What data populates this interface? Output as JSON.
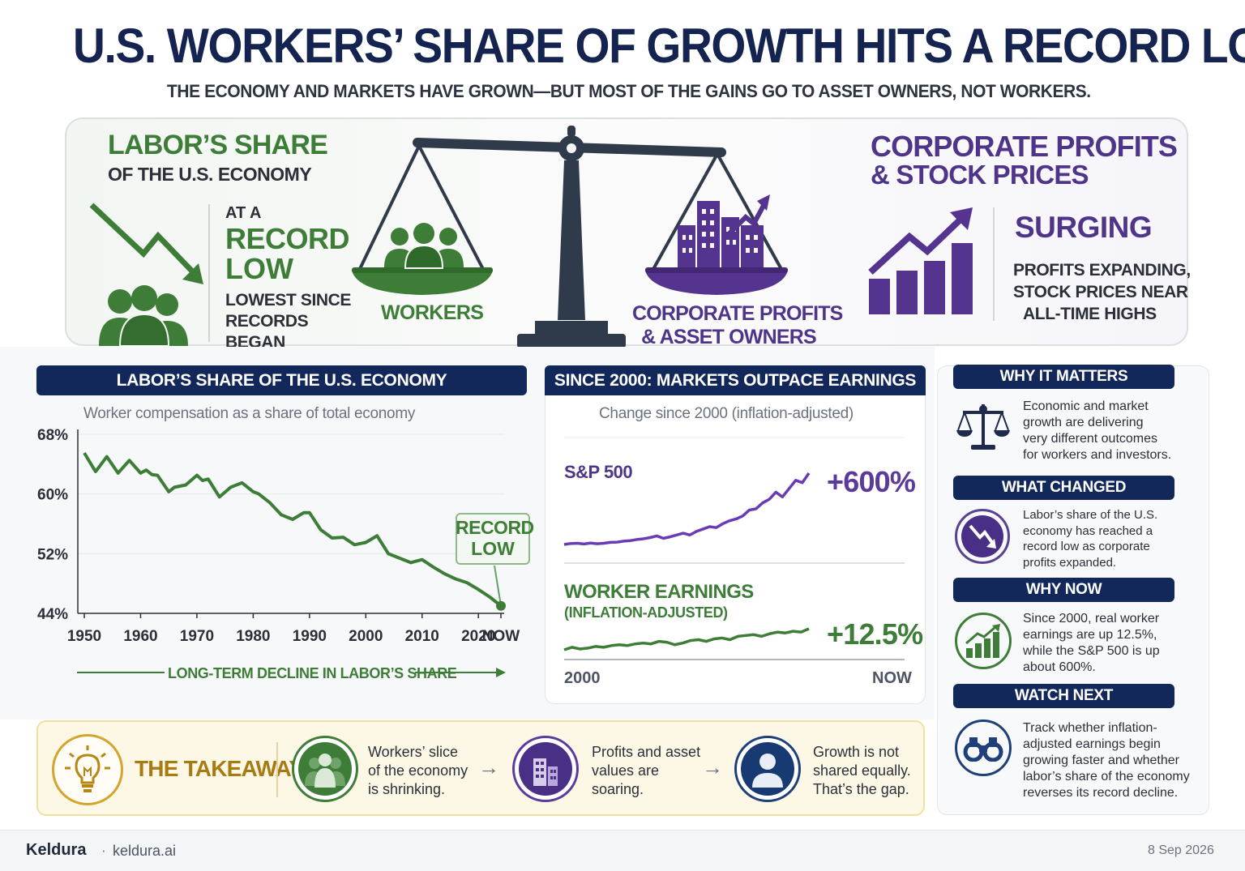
{
  "header": {
    "title": "U.S. WORKERS’ SHARE OF GROWTH HITS A RECORD LOW",
    "subtitle": "THE ECONOMY AND MARKETS HAVE GROWN—BUT MOST OF THE GAINS GO TO ASSET OWNERS, NOT WORKERS."
  },
  "top": {
    "labor_title": "LABOR’S SHARE",
    "labor_sub": "OF THE U.S. ECONOMY",
    "at_a": "AT A",
    "record": "RECORD",
    "low": "LOW",
    "lowest_1": "LOWEST SINCE",
    "lowest_2": "RECORDS",
    "lowest_3": "BEGAN",
    "workers_label": "WORKERS",
    "corp_label_1": "CORPORATE PROFITS",
    "corp_label_2": "& ASSET OWNERS",
    "corp_title_1": "CORPORATE PROFITS",
    "corp_title_2": "& STOCK PRICES",
    "surging": "SURGING",
    "surging_1": "PROFITS EXPANDING,",
    "surging_2": "STOCK PRICES NEAR",
    "surging_3": "ALL-TIME HIGHS"
  },
  "left_chart": {
    "header": "LABOR’S SHARE OF THE U.S. ECONOMY",
    "caption": "Worker compensation as a share of total economy",
    "annotation_1": "RECORD",
    "annotation_2": "LOW",
    "footer": "LONG-TERM DECLINE IN LABOR’S SHARE"
  },
  "mid_chart": {
    "header": "SINCE 2000: MARKETS OUTPACE EARNINGS",
    "caption": "Change since 2000 (inflation-adjusted)",
    "sp_label": "S&P 500",
    "sp_value": "+600%",
    "worker_label": "WORKER EARNINGS",
    "worker_sub": "(INFLATION-ADJUSTED)",
    "worker_value": "+12.5%",
    "x_start": "2000",
    "x_end": "NOW"
  },
  "side": {
    "why_matters_title": "WHY IT MATTERS",
    "why_matters_text": [
      "Economic and market",
      "growth are delivering",
      "very different outcomes",
      "for workers and investors."
    ],
    "what_changed_title": "WHAT CHANGED",
    "what_changed_text": [
      "Labor’s share of the U.S.",
      "economy has reached a",
      "record low as corporate",
      "profits expanded."
    ],
    "why_now_title": "WHY NOW",
    "why_now_text": [
      "Since 2000, real worker",
      "earnings are up 12.5%,",
      "while the S&P 500 is up",
      "about 600%."
    ],
    "watch_title": "WATCH NEXT",
    "watch_text": [
      "Track whether inflation-",
      "adjusted earnings begin",
      "growing faster and whether",
      "labor’s share of the economy",
      "reverses its record decline."
    ]
  },
  "takeaway": {
    "title": "THE TAKEAWAY",
    "item1": [
      "Workers’ slice",
      "of the economy",
      "is shrinking."
    ],
    "item2": [
      "Profits and asset",
      "values are",
      "soaring."
    ],
    "item3": [
      "Growth is not",
      "shared equally.",
      "That’s the gap."
    ],
    "arrow": "→"
  },
  "footer": {
    "brand": "Keldura",
    "sep": "·",
    "site": "keldura.ai",
    "date": "8 Sep 2026"
  },
  "colors": {
    "navy": "#13285a",
    "green": "#3e7d38",
    "purple": "#5b3a9c",
    "gold": "#a87a12"
  },
  "chart_data": [
    {
      "type": "line",
      "title": "LABOR’S SHARE OF THE U.S. ECONOMY",
      "subtitle": "Worker compensation as a share of total economy",
      "x_tick_labels": [
        "1950",
        "1960",
        "1970",
        "1980",
        "1990",
        "2000",
        "2010",
        "2020",
        "NOW"
      ],
      "y_tick_labels": [
        "68%",
        "60%",
        "52%",
        "44%"
      ],
      "y_ticks": [
        68,
        60,
        52,
        44
      ],
      "ylim": [
        44,
        68
      ],
      "xlim": [
        1950,
        2024
      ],
      "grid": true,
      "series": [
        {
          "x": [
            1950,
            1952,
            1954,
            1956,
            1958,
            1960,
            1961,
            1962,
            1963,
            1965,
            1966,
            1968,
            1970,
            1971,
            1972,
            1974,
            1976,
            1978,
            1980,
            1981,
            1983,
            1985,
            1987,
            1989,
            1990,
            1992,
            1994,
            1996,
            1998,
            2000,
            2002,
            2004,
            2006,
            2008,
            2010,
            2012,
            2014,
            2016,
            2018,
            2020,
            2022,
            2024
          ],
          "y": [
            65.5,
            63.0,
            65.0,
            62.8,
            64.5,
            62.8,
            63.2,
            62.6,
            62.5,
            60.3,
            60.9,
            61.2,
            62.5,
            61.8,
            62.0,
            59.6,
            60.9,
            61.5,
            60.3,
            60.0,
            58.8,
            57.2,
            56.6,
            57.5,
            57.5,
            55.2,
            54.1,
            54.2,
            53.2,
            53.5,
            54.4,
            52.0,
            51.4,
            50.8,
            51.2,
            50.2,
            49.3,
            48.6,
            48.1,
            47.2,
            46.2,
            45.0
          ]
        }
      ],
      "annotations": [
        "RECORD LOW"
      ],
      "footer": "LONG-TERM DECLINE IN LABOR’S SHARE"
    },
    {
      "type": "line",
      "title": "SINCE 2000: MARKETS OUTPACE EARNINGS",
      "subtitle": "Change since 2000 (inflation-adjusted)",
      "x_tick_labels": [
        "2000",
        "NOW"
      ],
      "series": [
        {
          "name": "S&P 500",
          "end_label": "+600%",
          "values": [
            0,
            8,
            10,
            4,
            12,
            6,
            10,
            18,
            20,
            28,
            32,
            42,
            48,
            58,
            72,
            52,
            64,
            80,
            95,
            80,
            110,
            130,
            150,
            142,
            175,
            200,
            215,
            240,
            290,
            300,
            350,
            380,
            440,
            400,
            470,
            540,
            520,
            600
          ]
        },
        {
          "name": "WORKER EARNINGS (INFLATION-ADJUSTED)",
          "end_label": "+12.5%",
          "values": [
            0,
            1.5,
            0.5,
            1.0,
            2.0,
            1.5,
            2.5,
            3.0,
            2.5,
            3.5,
            4.0,
            3.5,
            5.0,
            4.5,
            3.0,
            4.0,
            5.5,
            6.0,
            5.0,
            6.5,
            7.0,
            6.0,
            8.0,
            8.5,
            9.0,
            8.0,
            9.5,
            10.5,
            10.0,
            11.0,
            10.5,
            12.5
          ]
        }
      ]
    }
  ]
}
